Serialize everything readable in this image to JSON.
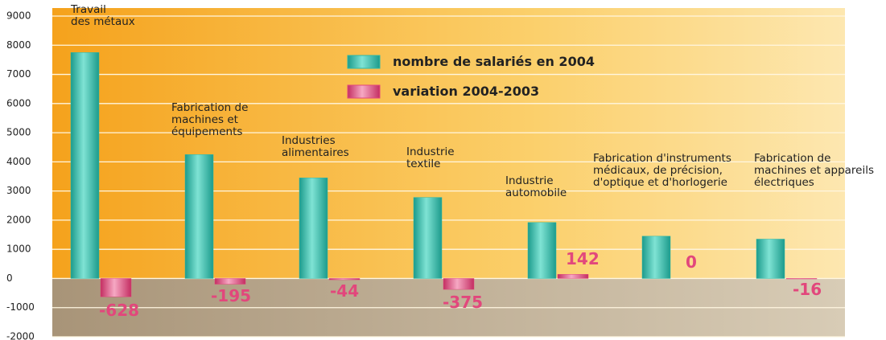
{
  "chart_data": {
    "type": "bar",
    "categories": [
      "Travail\ndes métaux",
      "Fabrication de\nmachines et\néquipements",
      "Industries\nalimentaires",
      "Industrie\ntextile",
      "Industrie\nautomobile",
      "Fabrication d'instruments\nmédicaux, de précision,\nd'optique et d'horlogerie",
      "Fabrication de\nmachines et appareils\nélectriques"
    ],
    "series": [
      {
        "name": "nombre de salariés en 2004",
        "color": "#2db8a6",
        "values": [
          7750,
          4250,
          3450,
          2780,
          1920,
          1450,
          1350
        ]
      },
      {
        "name": "variation 2004-2003",
        "color": "#e2477c",
        "values": [
          -628,
          -195,
          -44,
          -375,
          142,
          0,
          -16
        ]
      }
    ],
    "ylim": [
      -2000,
      9000
    ],
    "yticks": [
      -2000,
      -1000,
      0,
      1000,
      2000,
      3000,
      4000,
      5000,
      6000,
      7000,
      8000,
      9000
    ],
    "grid": true
  }
}
